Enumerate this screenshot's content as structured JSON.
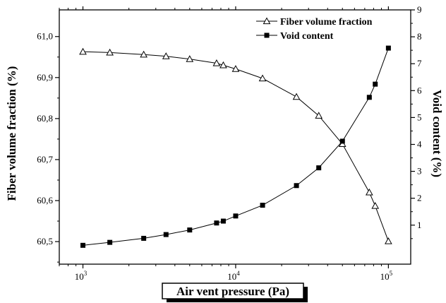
{
  "chart_data": {
    "type": "line",
    "xlabel": "Air vent pressure (Pa)",
    "ylabel_left": "Fiber volume fraction (%)",
    "ylabel_right": "Void content (%)",
    "x_scale": "log",
    "xlim": [
      700,
      140000
    ],
    "x_ticks": [
      {
        "value": 1000,
        "base": "10",
        "exp": "3"
      },
      {
        "value": 10000,
        "base": "10",
        "exp": "4"
      },
      {
        "value": 100000,
        "base": "10",
        "exp": "5"
      }
    ],
    "ylim_left": [
      60.445,
      61.065
    ],
    "y_ticks_left": [
      {
        "value": 60.5,
        "label": "60,5"
      },
      {
        "value": 60.6,
        "label": "60,6"
      },
      {
        "value": 60.7,
        "label": "60,7"
      },
      {
        "value": 60.8,
        "label": "60,8"
      },
      {
        "value": 60.9,
        "label": "60,9"
      },
      {
        "value": 61.0,
        "label": "61,0"
      }
    ],
    "ylim_right": [
      -0.45,
      9.0
    ],
    "y_ticks_right": [
      {
        "value": 1,
        "label": "1"
      },
      {
        "value": 2,
        "label": "2"
      },
      {
        "value": 3,
        "label": "3"
      },
      {
        "value": 4,
        "label": "4"
      },
      {
        "value": 5,
        "label": "5"
      },
      {
        "value": 6,
        "label": "6"
      },
      {
        "value": 7,
        "label": "7"
      },
      {
        "value": 8,
        "label": "8"
      },
      {
        "value": 9,
        "label": "9"
      }
    ],
    "legend_position": "top-right",
    "series": [
      {
        "name": "Fiber volume fraction",
        "axis": "left",
        "marker": "open-triangle",
        "color": "#000000",
        "x": [
          1000,
          1500,
          2500,
          3500,
          5000,
          7500,
          8300,
          10000,
          15000,
          25000,
          35000,
          50000,
          75000,
          82000,
          100000
        ],
        "y": [
          60.963,
          60.961,
          60.956,
          60.952,
          60.945,
          60.935,
          60.93,
          60.921,
          60.898,
          60.853,
          60.807,
          60.738,
          60.62,
          60.587,
          60.501
        ]
      },
      {
        "name": "Void content",
        "axis": "right",
        "marker": "filled-square",
        "color": "#000000",
        "x": [
          1000,
          1500,
          2500,
          3500,
          5000,
          7500,
          8300,
          10000,
          15000,
          25000,
          35000,
          50000,
          75000,
          82000,
          100000
        ],
        "y": [
          0.25,
          0.36,
          0.51,
          0.65,
          0.82,
          1.08,
          1.15,
          1.34,
          1.74,
          2.47,
          3.13,
          4.12,
          5.75,
          6.24,
          7.58
        ]
      }
    ]
  }
}
